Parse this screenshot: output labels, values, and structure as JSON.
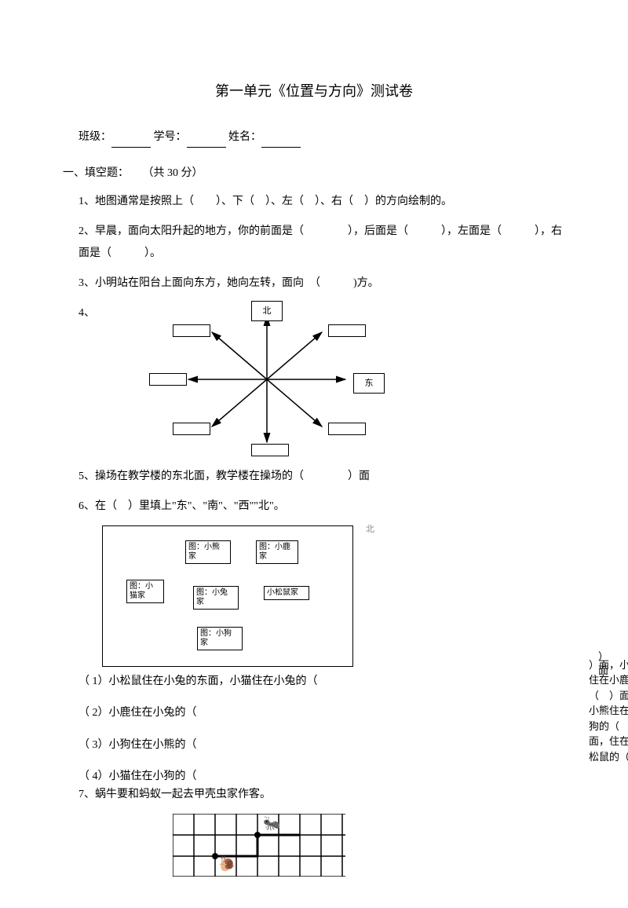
{
  "title": "第一单元《位置与方向》测试卷",
  "header": {
    "class_label": "班级：",
    "id_label": "学号：",
    "name_label": "姓名："
  },
  "section1": {
    "header": "一、填空题：",
    "points": "（共 30 分）"
  },
  "q1": "1、地图通常是按照上（　　）、下（　）、左（　）、右（　）的方向绘制的。",
  "q2": "2、早晨，面向太阳升起的地方，你的前面是（　　　　），后面是（　　　），左面是（　　　），右面是（　　　）。",
  "q3": "3、小明站在阳台上面向东方，她向左转，面向　（　　　)方。",
  "q4_label": "4、",
  "compass": {
    "north": "北",
    "east": "东"
  },
  "q5": "5、操场在教学楼的东北面，教学楼在操场的（　　　　）面",
  "q6": "6、在（　）里填上\"东\"、\"南\"、\"西\"\"北\"。",
  "houses": {
    "bear": "图：小熊\n家",
    "deer": "图：小鹿\n家",
    "cat": "图：小\n猫家",
    "rabbit": "图：小兔\n家",
    "squirrel": "小松鼠家",
    "dog": "图：小狗\n家",
    "north_arrow": "北"
  },
  "sub": {
    "bracket_top": "）\n面",
    "s1": "（ 1）小松鼠住在小兔的东面，小猫住在小兔的（",
    "s2": "（ 2）小鹿住在小兔的（",
    "s3": "（ 3）小狗住在小熊的（",
    "s4": "（ 4）小猫住在小狗的（",
    "right_text": "）面，小兔住在小鹿的（　）面，小熊住在小狗的（　）面，住在小松鼠的（"
  },
  "q7": "7、蜗牛要和蚂蚁一起去甲壳虫家作客。",
  "colors": {
    "text": "#000000",
    "bg": "#ffffff",
    "border": "#000000",
    "gray": "#888888"
  }
}
